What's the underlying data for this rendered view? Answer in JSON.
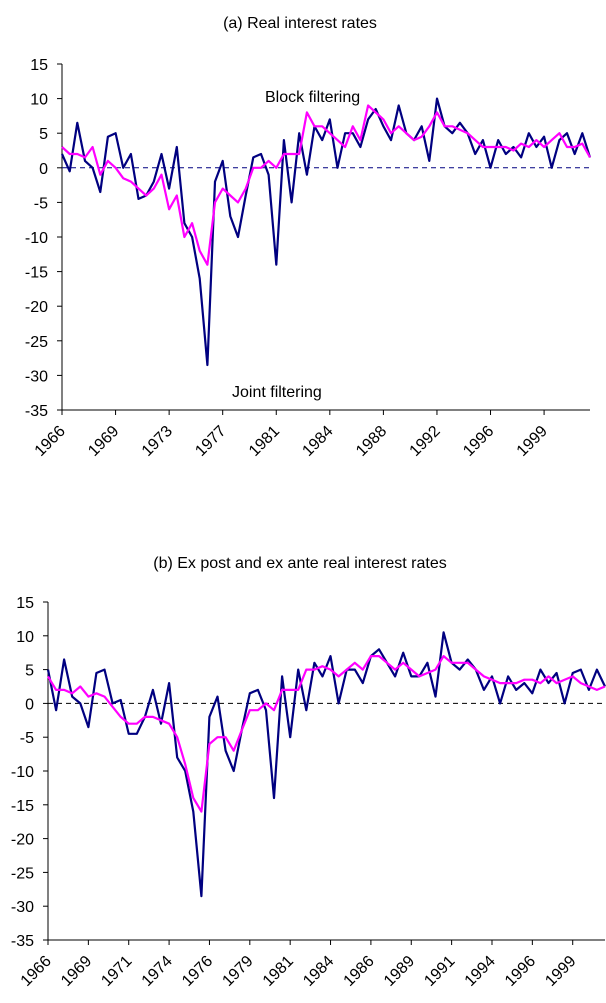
{
  "chart_data": [
    {
      "type": "line",
      "title": "(a) Real interest rates",
      "annotations": [
        "Block filtering",
        "Joint filtering"
      ],
      "categories": [
        "1966",
        null,
        null,
        null,
        null,
        null,
        null,
        "1969",
        null,
        null,
        null,
        null,
        null,
        null,
        "1973",
        null,
        null,
        null,
        null,
        null,
        null,
        "1977",
        null,
        null,
        null,
        null,
        null,
        null,
        "1981",
        null,
        null,
        null,
        null,
        null,
        null,
        "1984",
        null,
        null,
        null,
        null,
        null,
        null,
        "1988",
        null,
        null,
        null,
        null,
        null,
        null,
        "1992",
        null,
        null,
        null,
        null,
        null,
        null,
        "1996",
        null,
        null,
        null,
        null,
        null,
        null,
        "1999",
        null,
        null,
        null,
        null,
        null,
        null
      ],
      "ylim": [
        -35,
        15
      ],
      "yticks": [
        15,
        10,
        5,
        0,
        -5,
        -10,
        -15,
        -20,
        -25,
        -30,
        -35
      ],
      "zero_line_color": "#000080",
      "series": [
        {
          "color": "#000080",
          "values": [
            2,
            -0.5,
            6.5,
            1,
            0,
            -3.5,
            4.5,
            5,
            0,
            2,
            -4.5,
            -4,
            -2,
            2,
            -3,
            3,
            -8,
            -10,
            -16,
            -28.5,
            -2,
            1,
            -7,
            -10,
            -4,
            1.5,
            2,
            -1,
            -14,
            4,
            -5,
            5,
            -1,
            6,
            4,
            7,
            0,
            5,
            5,
            3,
            7,
            8.5,
            6,
            4,
            9,
            5,
            4,
            6,
            1,
            10,
            6,
            5,
            6.5,
            5,
            2,
            4,
            0,
            4,
            2,
            3,
            1.5,
            5,
            3,
            4.5,
            0,
            4,
            5,
            2,
            5,
            1.5
          ]
        },
        {
          "color": "#ff00ff",
          "values": [
            3,
            2,
            2,
            1.5,
            3,
            -1,
            1,
            0,
            -1.5,
            -2,
            -3,
            -4,
            -3,
            -1,
            -6,
            -4,
            -10,
            -8,
            -12,
            -14,
            -5,
            -3,
            -4,
            -5,
            -3,
            0,
            0,
            1,
            0,
            2,
            2,
            2,
            8,
            6,
            6,
            5,
            4,
            3,
            6,
            4,
            9,
            8,
            7,
            5,
            6,
            5,
            4,
            4.5,
            6,
            8,
            6,
            6,
            5.5,
            5,
            4,
            3,
            3,
            3,
            3,
            2.5,
            3.5,
            3,
            4,
            3,
            4,
            5,
            3,
            3,
            3.5,
            1.5
          ]
        }
      ]
    },
    {
      "type": "line",
      "title": "(b) Ex post and ex ante real interest rates",
      "categories": [
        "1966",
        null,
        null,
        null,
        null,
        "1969",
        null,
        null,
        null,
        null,
        "1971",
        null,
        null,
        null,
        null,
        "1974",
        null,
        null,
        null,
        null,
        "1976",
        null,
        null,
        null,
        null,
        "1979",
        null,
        null,
        null,
        null,
        "1981",
        null,
        null,
        null,
        null,
        "1984",
        null,
        null,
        null,
        null,
        "1986",
        null,
        null,
        null,
        null,
        "1989",
        null,
        null,
        null,
        null,
        "1991",
        null,
        null,
        null,
        null,
        "1994",
        null,
        null,
        null,
        null,
        "1996",
        null,
        null,
        null,
        null,
        "1999",
        null,
        null,
        null,
        null
      ],
      "ylim": [
        -35,
        15
      ],
      "yticks": [
        15,
        10,
        5,
        0,
        -5,
        -10,
        -15,
        -20,
        -25,
        -30,
        -35
      ],
      "zero_line_color": "#000000",
      "series": [
        {
          "color": "#000080",
          "values": [
            5,
            -1,
            6.5,
            1,
            0,
            -3.5,
            4.5,
            5,
            0,
            0.5,
            -4.5,
            -4.5,
            -2,
            2,
            -3,
            3,
            -8,
            -10,
            -16,
            -28.5,
            -2,
            1,
            -7,
            -10,
            -4,
            1.5,
            2,
            -1,
            -14,
            4,
            -5,
            5,
            -1,
            6,
            4,
            7,
            0,
            5,
            5,
            3,
            7,
            8,
            6,
            4,
            7.5,
            4,
            4,
            6,
            1,
            10.5,
            6,
            5,
            6.5,
            5,
            2,
            4,
            0,
            4,
            2,
            3,
            1.5,
            5,
            3,
            4.5,
            0,
            4.5,
            5,
            2,
            5,
            2.5
          ]
        },
        {
          "color": "#ff00ff",
          "values": [
            4,
            2,
            2,
            1.5,
            2.5,
            1,
            1.5,
            1,
            -0.5,
            -2,
            -3,
            -3,
            -2,
            -2,
            -2.5,
            -3,
            -5,
            -9,
            -14,
            -16,
            -6,
            -5,
            -5,
            -7,
            -4,
            -1,
            -1,
            0,
            -1,
            2,
            2,
            2,
            5,
            5,
            5.5,
            5,
            4,
            5,
            6,
            5,
            7,
            7,
            6,
            5,
            6,
            5,
            4,
            4.5,
            5,
            7,
            6,
            6,
            6,
            5,
            4,
            3.5,
            3,
            3,
            3,
            3.5,
            3.5,
            3,
            4,
            3,
            3.5,
            4,
            3,
            2.5,
            2,
            2.5
          ]
        }
      ]
    }
  ]
}
